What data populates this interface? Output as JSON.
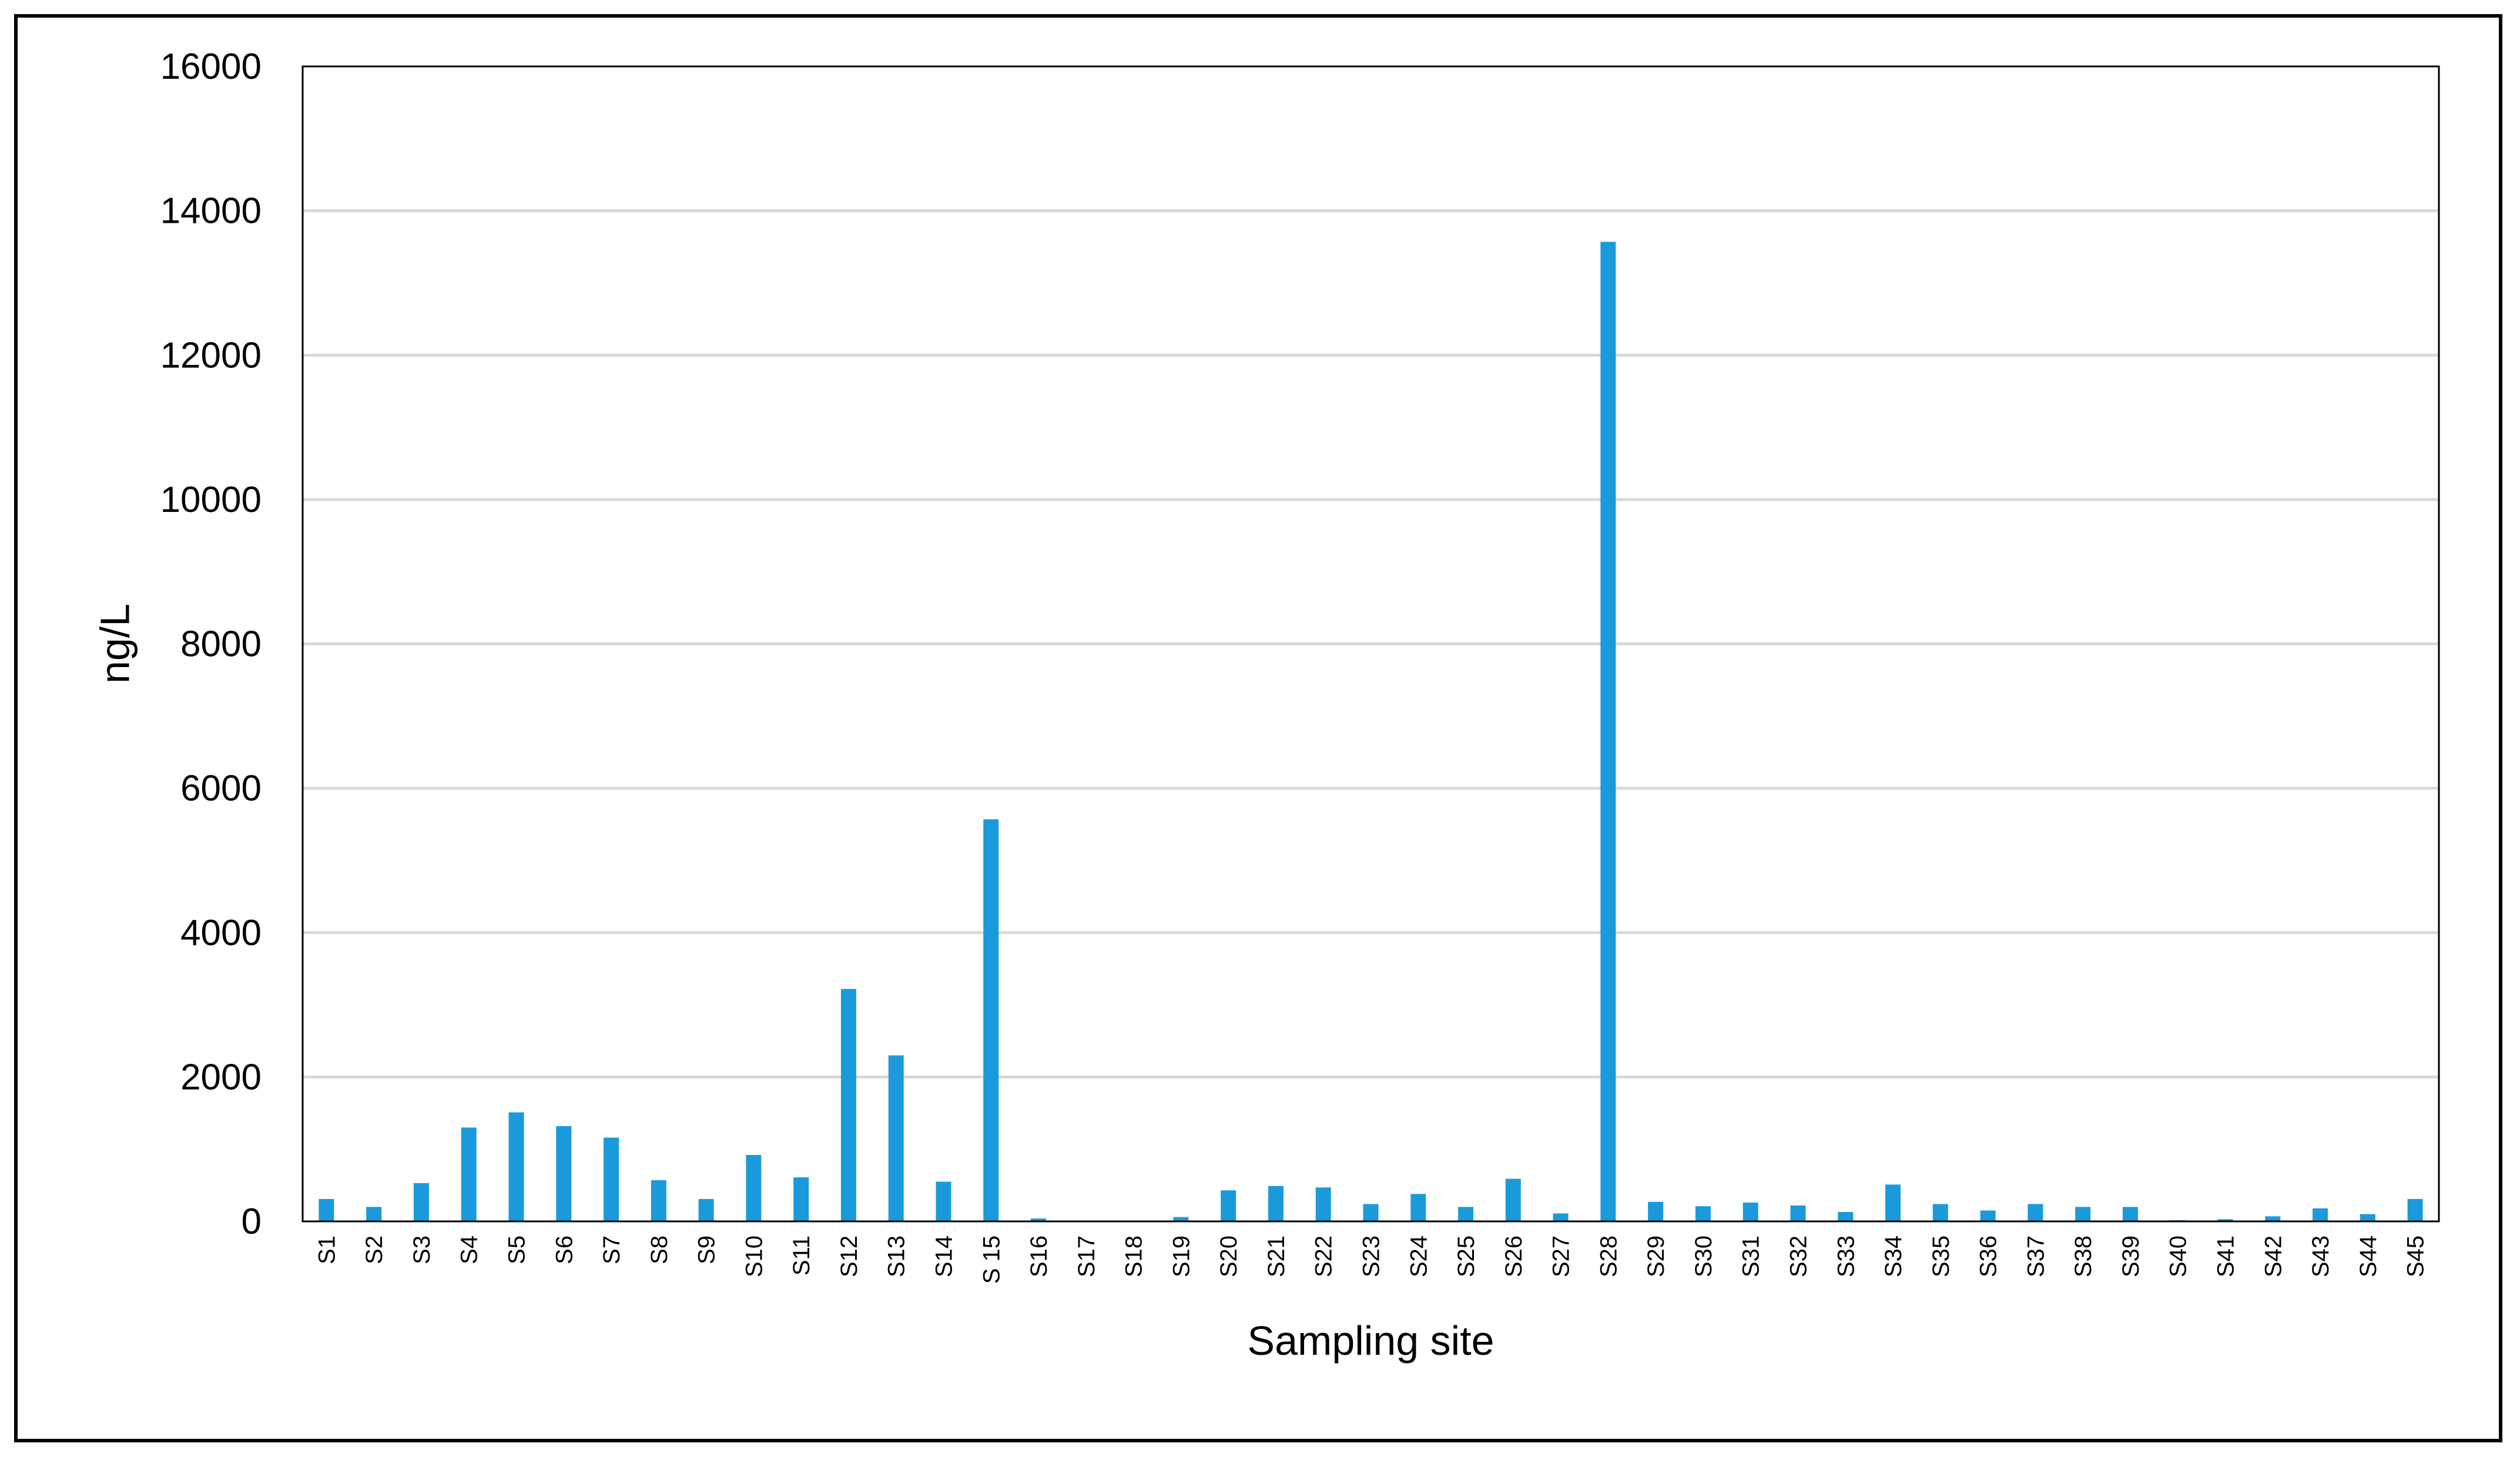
{
  "chart_data": {
    "type": "bar",
    "title": "",
    "xlabel": "Sampling site",
    "ylabel": "ng/L",
    "ylim": [
      0,
      16000
    ],
    "yticks": [
      0,
      2000,
      4000,
      6000,
      8000,
      10000,
      12000,
      14000,
      16000
    ],
    "grid": true,
    "legend": "none",
    "bar_color": "#1B9ADB",
    "grid_color": "#D9D9D9",
    "categories": [
      "S1",
      "S2",
      "S3",
      "S4",
      "S5",
      "S6",
      "S7",
      "S8",
      "S9",
      "S10",
      "S11",
      "S12",
      "S13",
      "S14",
      "S 15",
      "S16",
      "S17",
      "S18",
      "S19",
      "S20",
      "S21",
      "S22",
      "S23",
      "S24",
      "S25",
      "S26",
      "S27",
      "S28",
      "S29",
      "S30",
      "S31",
      "S32",
      "S33",
      "S34",
      "S35",
      "S36",
      "S37",
      "S38",
      "S39",
      "S40",
      "S41",
      "S42",
      "S43",
      "S44",
      "S45"
    ],
    "values": [
      310,
      200,
      530,
      1300,
      1510,
      1320,
      1160,
      570,
      310,
      920,
      610,
      3220,
      2300,
      550,
      5570,
      40,
      10,
      10,
      60,
      430,
      490,
      470,
      240,
      380,
      200,
      590,
      110,
      13570,
      270,
      210,
      260,
      220,
      130,
      510,
      240,
      150,
      240,
      200,
      200,
      15,
      30,
      70,
      180,
      100,
      310
    ]
  }
}
